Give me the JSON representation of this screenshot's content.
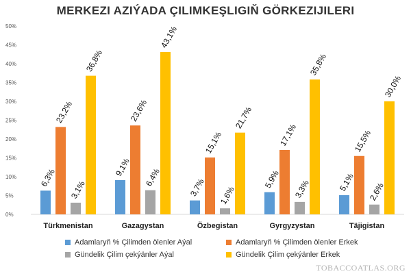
{
  "title": "MERKEZI AZIÝADA ÇILIMKEŞLIGIŇ GÖRKEZIJILERI",
  "watermark": "TOBACCOATLAS.ORG",
  "colors": {
    "series_0": "#5b9bd5",
    "series_1": "#ed7d31",
    "series_2": "#a5a5a5",
    "series_3": "#ffc000"
  },
  "chart_data": {
    "type": "bar",
    "categories": [
      "Türkmenistan",
      "Gazagystan",
      "Özbegistan",
      "Gyrgyzystan",
      "Täjigistan"
    ],
    "series": [
      {
        "name": "Adamlaryň % Çilimden ölenler Aýal",
        "values": [
          6.3,
          9.1,
          3.7,
          5.9,
          5.1
        ],
        "labels": [
          "6,3%",
          "9,1%",
          "3,7%",
          "5,9%",
          "5,1%"
        ]
      },
      {
        "name": "Adamlaryň % Çilimden ölenler Erkek",
        "values": [
          23.2,
          23.6,
          15.1,
          17.1,
          15.5
        ],
        "labels": [
          "23,2%",
          "23,6%",
          "15,1%",
          "17,1%",
          "15,5%"
        ]
      },
      {
        "name": "Gündelik Çilim çekýänler Aýal",
        "values": [
          3.1,
          6.4,
          1.6,
          3.3,
          2.6
        ],
        "labels": [
          "3,1%",
          "6,4%",
          "1,6%",
          "3,3%",
          "2,6%"
        ]
      },
      {
        "name": "Gündelik Çilim çekýänler Erkek",
        "values": [
          36.8,
          43.1,
          21.7,
          35.8,
          30.0
        ],
        "labels": [
          "36,8%",
          "43,1%",
          "21,7%",
          "35,8%",
          "30,0%"
        ]
      }
    ],
    "ylim": [
      0,
      50
    ],
    "yticks": [
      "0%",
      "5%",
      "10%",
      "15%",
      "20%",
      "25%",
      "30%",
      "35%",
      "40%",
      "45%",
      "50%"
    ],
    "grid": false,
    "legend_position": "bottom"
  }
}
